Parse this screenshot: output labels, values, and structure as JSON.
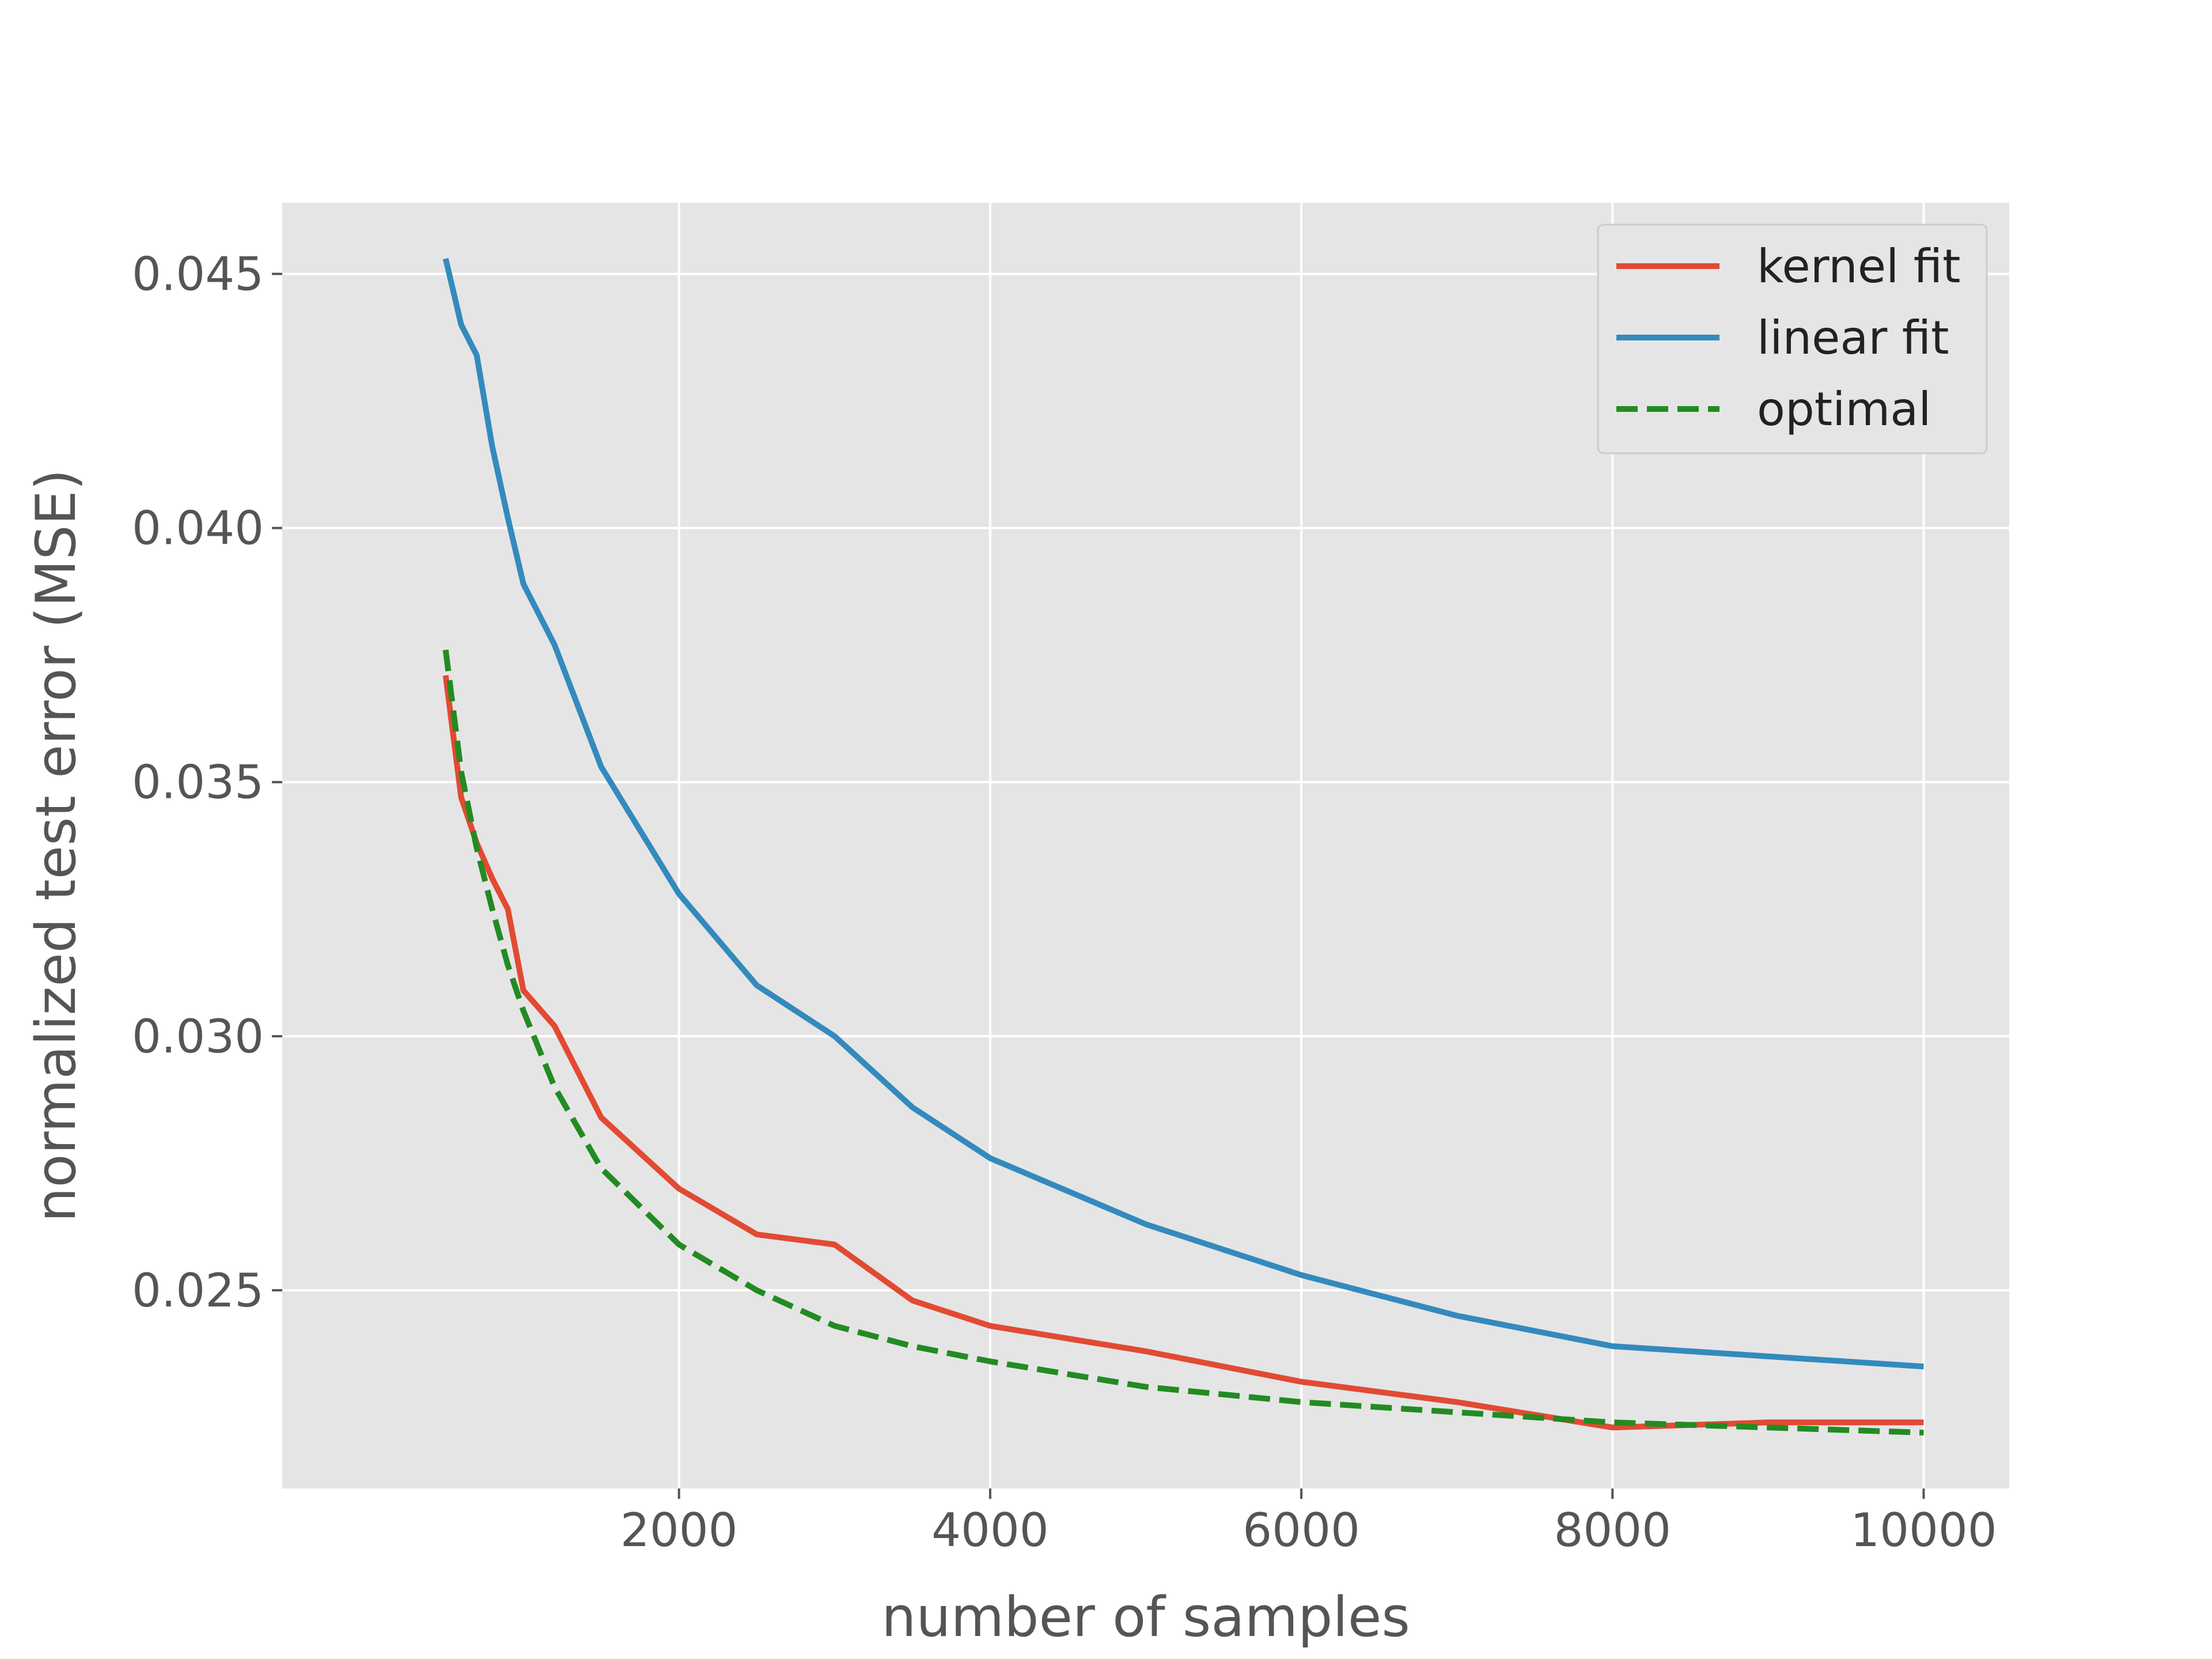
{
  "chart_data": {
    "type": "line",
    "title": "",
    "xlabel": "number of samples",
    "ylabel": "normalized test error (MSE)",
    "xlim": [
      -550,
      10550
    ],
    "ylim": [
      0.0211,
      0.0464
    ],
    "xticks": [
      2000,
      4000,
      6000,
      8000,
      10000
    ],
    "xtick_labels": [
      "2000",
      "4000",
      "6000",
      "8000",
      "10000"
    ],
    "yticks": [
      0.025,
      0.03,
      0.035,
      0.04,
      0.045
    ],
    "ytick_labels": [
      "0.025",
      "0.030",
      "0.035",
      "0.040",
      "0.045"
    ],
    "grid": true,
    "legend_position": "top-right",
    "series": [
      {
        "name": "kernel fit",
        "color": "#E24A33",
        "dash": "solid",
        "x": [
          500,
          600,
          700,
          800,
          900,
          1000,
          1200,
          1500,
          2000,
          2500,
          3000,
          3500,
          4000,
          5000,
          6000,
          7000,
          8000,
          9000,
          10000
        ],
        "y": [
          0.0371,
          0.0347,
          0.0338,
          0.0331,
          0.0325,
          0.0309,
          0.0302,
          0.0284,
          0.027,
          0.0261,
          0.0259,
          0.0248,
          0.0243,
          0.0238,
          0.0232,
          0.0228,
          0.0223,
          0.0224,
          0.0224
        ]
      },
      {
        "name": "linear fit",
        "color": "#348ABD",
        "dash": "solid",
        "x": [
          500,
          600,
          700,
          800,
          900,
          1000,
          1200,
          1500,
          2000,
          2500,
          3000,
          3500,
          4000,
          5000,
          6000,
          7000,
          8000,
          9000,
          10000
        ],
        "y": [
          0.0453,
          0.044,
          0.0434,
          0.0416,
          0.0402,
          0.0389,
          0.0377,
          0.0353,
          0.0328,
          0.031,
          0.03,
          0.0286,
          0.0276,
          0.0263,
          0.0253,
          0.0245,
          0.0239,
          0.0237,
          0.0235
        ]
      },
      {
        "name": "optimal",
        "color": "#228B22",
        "dash": "dashed",
        "x": [
          500,
          600,
          700,
          800,
          900,
          1000,
          1200,
          1500,
          2000,
          2500,
          3000,
          3500,
          4000,
          5000,
          6000,
          7000,
          8000,
          9000,
          10000
        ],
        "y": [
          0.0376,
          0.0352,
          0.0337,
          0.0325,
          0.0314,
          0.0305,
          0.029,
          0.0274,
          0.0259,
          0.025,
          0.0243,
          0.0239,
          0.0236,
          0.0231,
          0.0228,
          0.0226,
          0.0224,
          0.0223,
          0.0222
        ]
      }
    ]
  }
}
